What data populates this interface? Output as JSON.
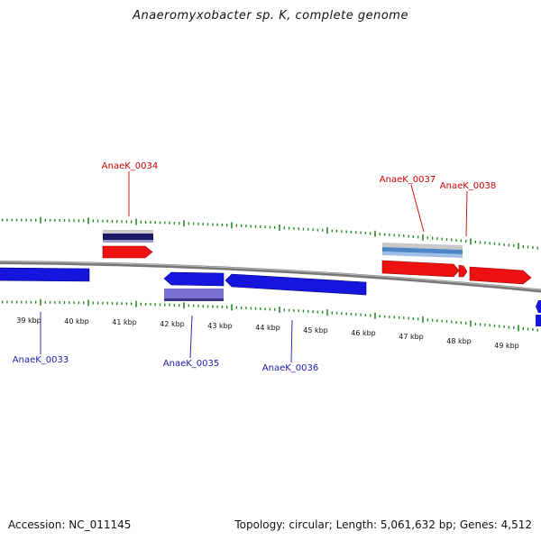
{
  "title": "Anaeromyxobacter sp. K, complete genome",
  "footer": {
    "accession": "Accession: NC_011145",
    "summary": "Topology: circular; Length: 5,061,632 bp; Genes: 4,512"
  },
  "colors": {
    "forward": "#ee1111",
    "reverse": "#1515dd",
    "tick": "#2a8a2a",
    "backbone": "#888888",
    "label_forward": "#cc0000",
    "label_reverse": "#1a1aaa",
    "purple": "#7b6fcf"
  },
  "ruler": [
    {
      "label": "39 kbp"
    },
    {
      "label": "40 kbp"
    },
    {
      "label": "41 kbp"
    },
    {
      "label": "42 kbp"
    },
    {
      "label": "43 kbp"
    },
    {
      "label": "44 kbp"
    },
    {
      "label": "45 kbp"
    },
    {
      "label": "46 kbp"
    },
    {
      "label": "47 kbp"
    },
    {
      "label": "48 kbp"
    },
    {
      "label": "49 kbp"
    }
  ],
  "gene_labels": [
    {
      "name": "AnaeK_0034",
      "strand": "forward"
    },
    {
      "name": "AnaeK_0037",
      "strand": "forward"
    },
    {
      "name": "AnaeK_0038",
      "strand": "forward"
    },
    {
      "name": "AnaeK_0033",
      "strand": "reverse"
    },
    {
      "name": "AnaeK_0035",
      "strand": "reverse"
    },
    {
      "name": "AnaeK_0036",
      "strand": "reverse"
    }
  ]
}
